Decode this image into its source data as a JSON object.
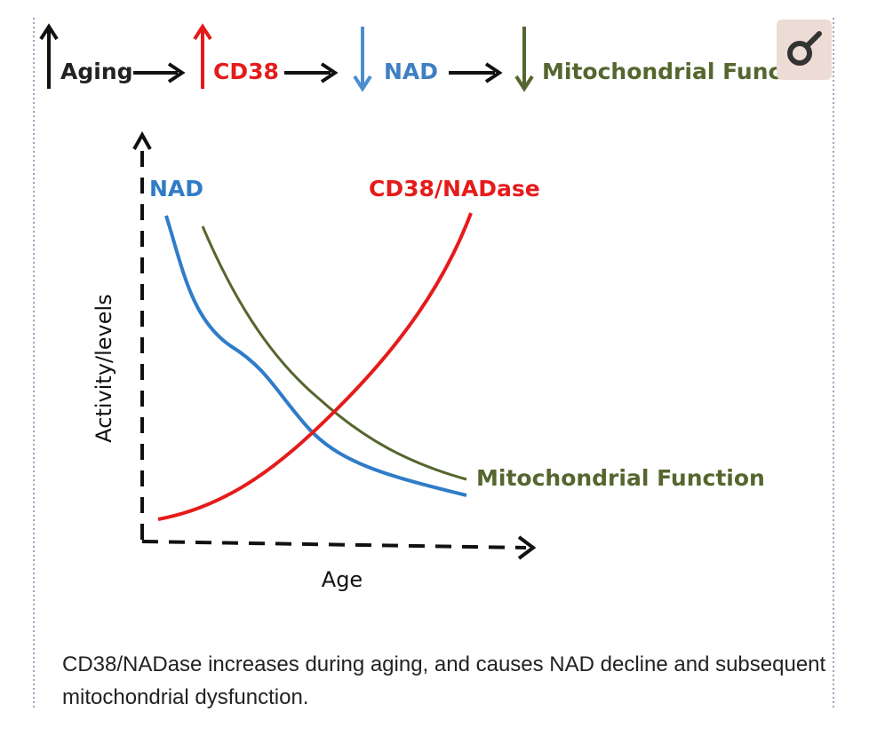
{
  "header": {
    "steps": [
      "Aging",
      "CD38",
      "NAD",
      "Mitochondrial Function"
    ]
  },
  "diagram": {
    "curve_labels": [
      "NAD",
      "CD38/NADase",
      "Mitochondrial Function"
    ],
    "y_axis_label": "Activity/levels",
    "x_axis_label": "Age"
  },
  "caption": "CD38/NADase increases during aging, and causes NAD decline and subsequent mitochondrial dysfunction."
}
